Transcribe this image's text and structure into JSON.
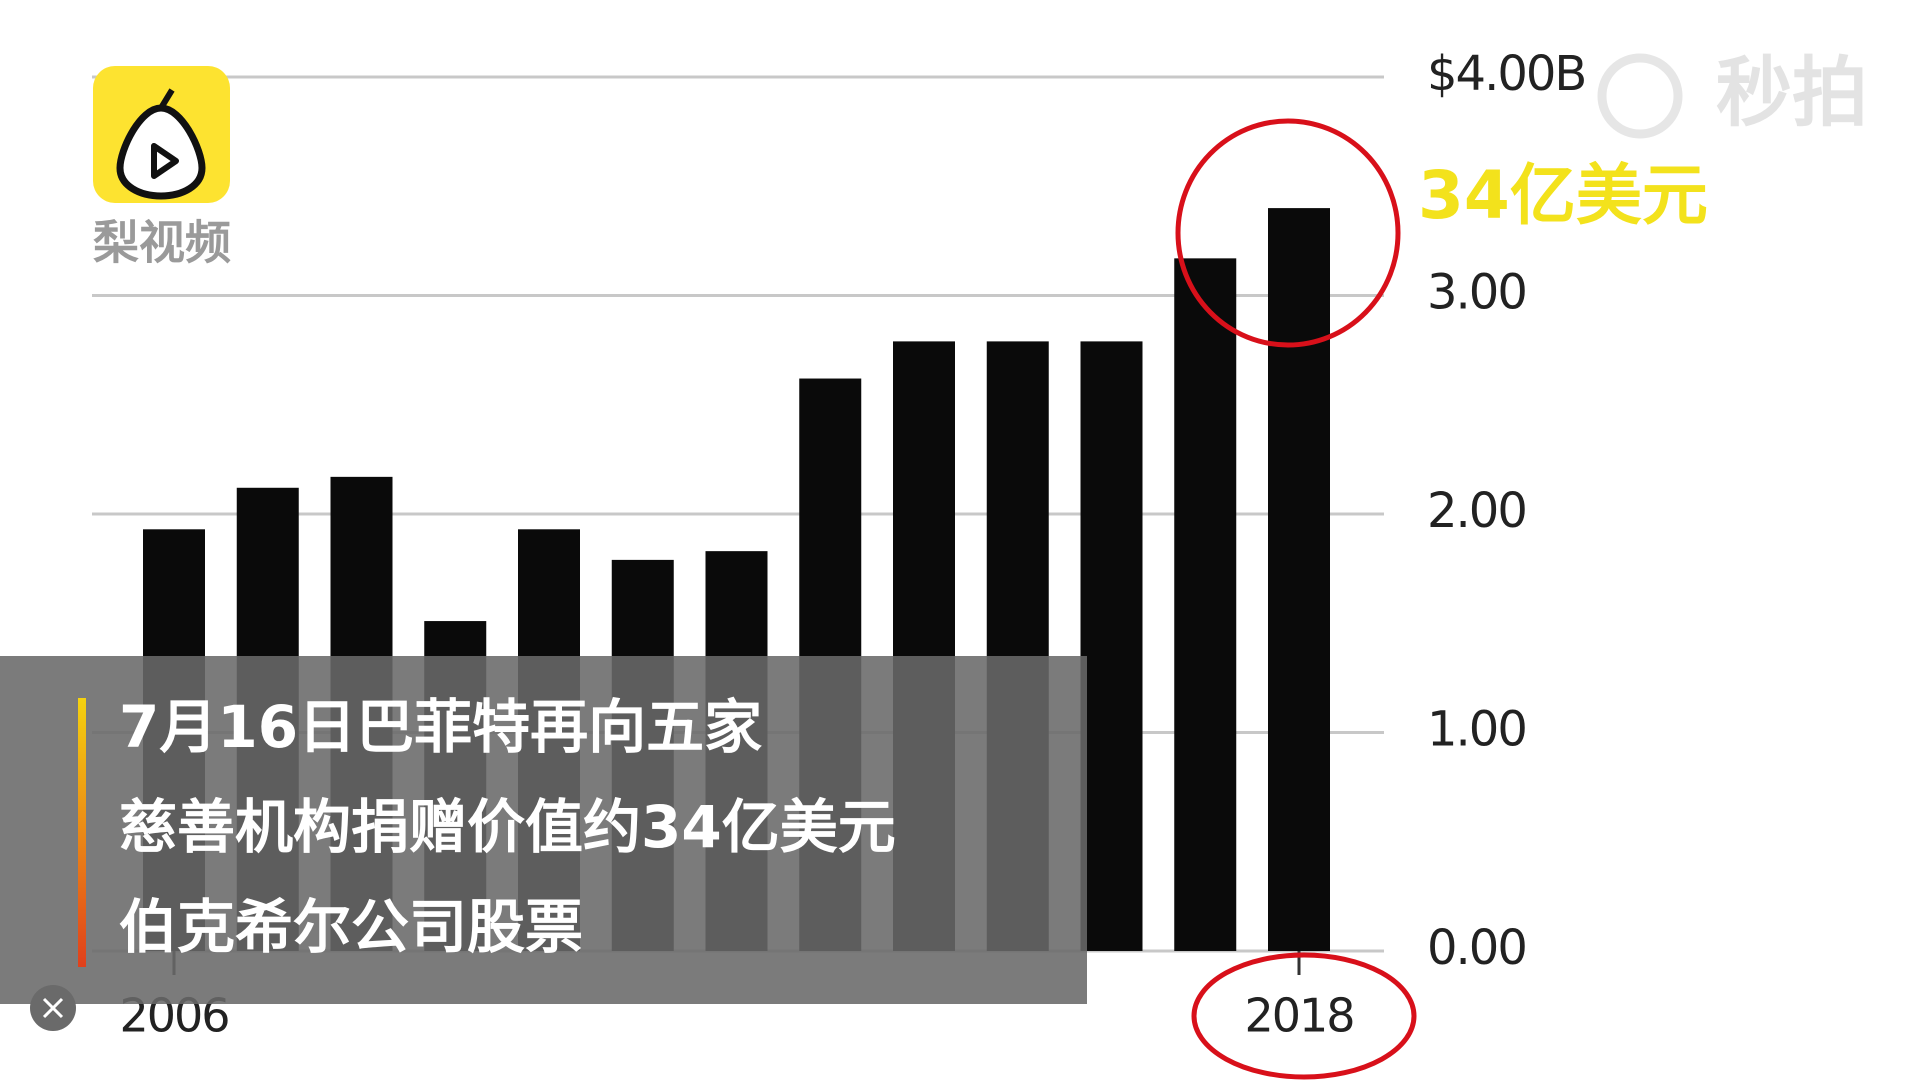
{
  "chart_data": {
    "type": "bar",
    "categories": [
      "2006",
      null,
      null,
      null,
      null,
      null,
      null,
      null,
      null,
      null,
      null,
      null,
      "2018"
    ],
    "values": [
      1.93,
      2.12,
      2.17,
      1.51,
      1.93,
      1.79,
      1.83,
      2.62,
      2.79,
      2.79,
      2.79,
      3.17,
      3.4
    ],
    "color": "#0a0a0a",
    "ylim": [
      0,
      4
    ],
    "yticks": [
      {
        "value": 0,
        "label": "0.00"
      },
      {
        "value": 1,
        "label": "1.00"
      },
      {
        "value": 2,
        "label": "2.00"
      },
      {
        "value": 3,
        "label": "3.00"
      },
      {
        "value": 4,
        "label": "$4.00B"
      }
    ],
    "grid": true,
    "annotation": "34亿美元"
  },
  "logo": {
    "text": "梨视频"
  },
  "watermark": "秒拍",
  "subtitle": {
    "lines": [
      "7月16日巴菲特再向五家",
      "慈善机构捐赠价值约34亿美元",
      "伯克希尔公司股票"
    ]
  }
}
